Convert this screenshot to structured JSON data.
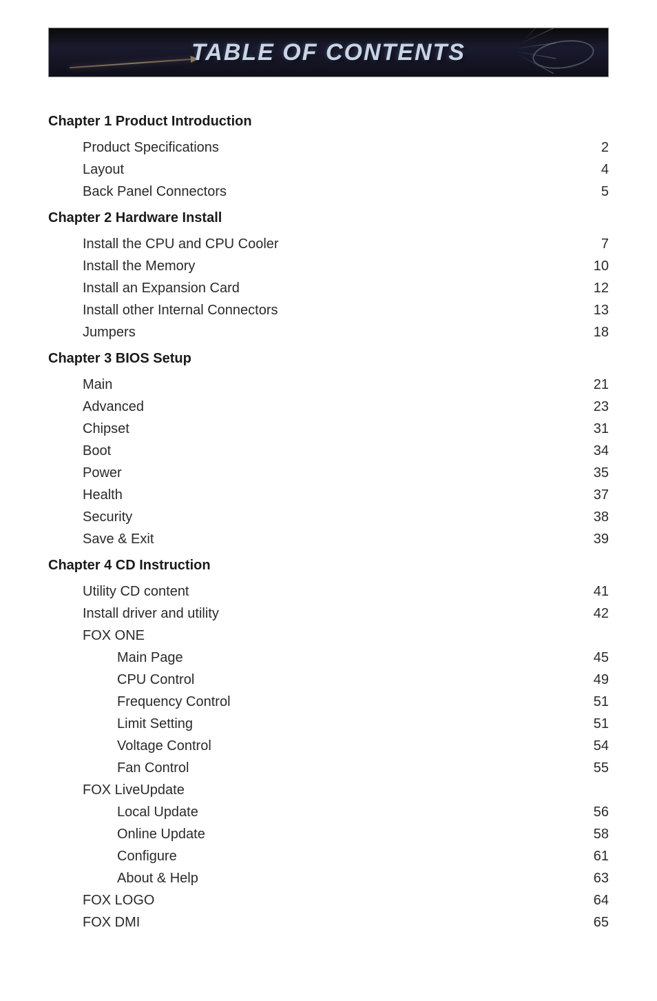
{
  "banner": {
    "title": "TABLE OF CONTENTS",
    "background_gradient_top": "#0a0a0a",
    "background_gradient_mid": "#1a1a2e",
    "background_gradient_bottom": "#0f0f1a",
    "title_color": "#c8d4e8",
    "title_fontsize": 34
  },
  "text_color": "#2a2a2a",
  "heading_color": "#1a1a1a",
  "body_fontsize": 20,
  "toc": [
    {
      "type": "chapter",
      "label": "Chapter 1  Product Introduction"
    },
    {
      "type": "entry",
      "indent": 1,
      "label": "Product Specifications",
      "page": "2"
    },
    {
      "type": "entry",
      "indent": 1,
      "label": "Layout",
      "page": "4"
    },
    {
      "type": "entry",
      "indent": 1,
      "label": "Back Panel Connectors",
      "page": "5"
    },
    {
      "type": "chapter",
      "label": "Chapter 2  Hardware Install"
    },
    {
      "type": "entry",
      "indent": 1,
      "label": "Install the CPU and CPU Cooler",
      "page": "7"
    },
    {
      "type": "entry",
      "indent": 1,
      "label": "Install the Memory",
      "page": "10"
    },
    {
      "type": "entry",
      "indent": 1,
      "label": "Install an Expansion Card",
      "page": "12"
    },
    {
      "type": "entry",
      "indent": 1,
      "label": "Install other Internal Connectors",
      "page": "13"
    },
    {
      "type": "entry",
      "indent": 1,
      "label": "Jumpers",
      "page": "18"
    },
    {
      "type": "chapter",
      "label": "Chapter 3  BIOS Setup"
    },
    {
      "type": "entry",
      "indent": 1,
      "label": "Main",
      "page": "21"
    },
    {
      "type": "entry",
      "indent": 1,
      "label": "Advanced",
      "page": "23"
    },
    {
      "type": "entry",
      "indent": 1,
      "label": "Chipset",
      "page": "31"
    },
    {
      "type": "entry",
      "indent": 1,
      "label": "Boot",
      "page": "34"
    },
    {
      "type": "entry",
      "indent": 1,
      "label": "Power",
      "page": "35"
    },
    {
      "type": "entry",
      "indent": 1,
      "label": "Health",
      "page": "37"
    },
    {
      "type": "entry",
      "indent": 1,
      "label": "Security",
      "page": "38"
    },
    {
      "type": "entry",
      "indent": 1,
      "label": "Save & Exit",
      "page": "39"
    },
    {
      "type": "chapter",
      "label": "Chapter 4  CD Instruction"
    },
    {
      "type": "entry",
      "indent": 1,
      "label": "Utility CD content",
      "page": "41"
    },
    {
      "type": "entry",
      "indent": 1,
      "label": "Install driver and utility",
      "page": "42"
    },
    {
      "type": "subheading",
      "indent": 1,
      "label": "FOX ONE"
    },
    {
      "type": "entry",
      "indent": 2,
      "label": "Main Page",
      "page": "45"
    },
    {
      "type": "entry",
      "indent": 2,
      "label": "CPU Control",
      "page": "49"
    },
    {
      "type": "entry",
      "indent": 2,
      "label": "Frequency Control",
      "page": "51"
    },
    {
      "type": "entry",
      "indent": 2,
      "label": "Limit Setting",
      "page": "51"
    },
    {
      "type": "entry",
      "indent": 2,
      "label": "Voltage Control",
      "page": "54"
    },
    {
      "type": "entry",
      "indent": 2,
      "label": "Fan Control",
      "page": "55"
    },
    {
      "type": "subheading",
      "indent": 1,
      "label": "FOX LiveUpdate"
    },
    {
      "type": "entry",
      "indent": 2,
      "label": "Local Update",
      "page": "56"
    },
    {
      "type": "entry",
      "indent": 2,
      "label": "Online Update",
      "page": "58"
    },
    {
      "type": "entry",
      "indent": 2,
      "label": "Configure",
      "page": "61"
    },
    {
      "type": "entry",
      "indent": 2,
      "label": "About & Help",
      "page": "63"
    },
    {
      "type": "entry",
      "indent": 1,
      "label": "FOX LOGO",
      "page": "64"
    },
    {
      "type": "entry",
      "indent": 1,
      "label": "FOX DMI",
      "page": "65"
    }
  ]
}
